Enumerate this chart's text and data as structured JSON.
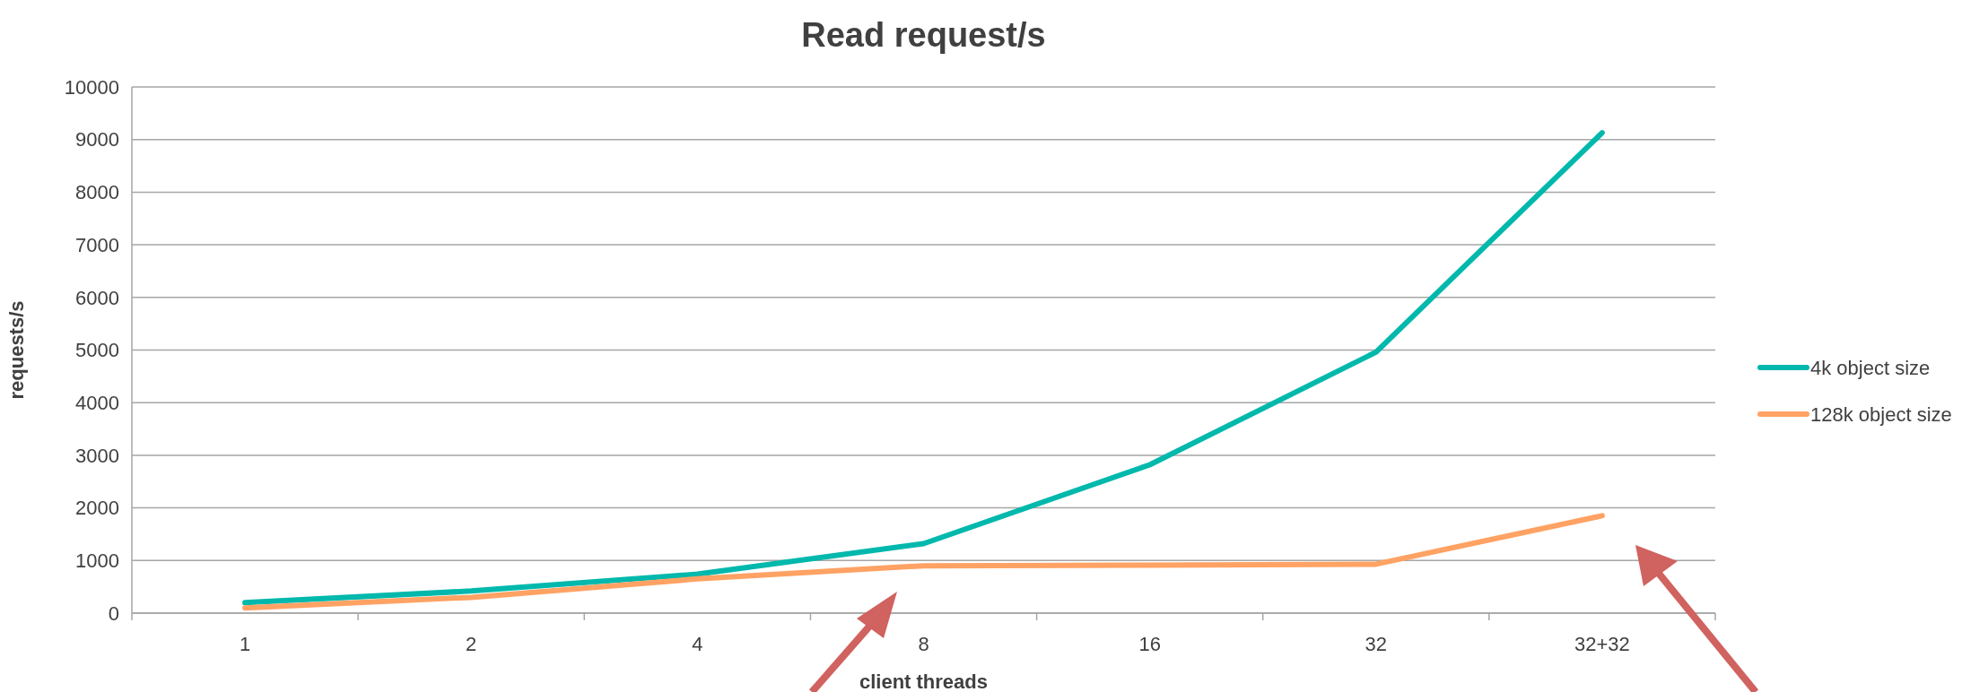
{
  "chart_data": {
    "type": "line",
    "title": "Read request/s",
    "xlabel": "client threads",
    "ylabel": "requests/s",
    "categories": [
      "1",
      "2",
      "4",
      "8",
      "16",
      "32",
      "32+32"
    ],
    "series": [
      {
        "name": "4k object size",
        "color": "#00b8ac",
        "values": [
          200,
          420,
          740,
          1320,
          2820,
          4960,
          9130
        ]
      },
      {
        "name": "128k object size",
        "color": "#ffa264",
        "values": [
          100,
          300,
          650,
          900,
          910,
          930,
          1850
        ]
      }
    ],
    "ylim": [
      0,
      10000
    ],
    "yticks": [
      0,
      1000,
      2000,
      3000,
      4000,
      5000,
      6000,
      7000,
      8000,
      9000,
      10000
    ],
    "grid": "y",
    "legend": "right",
    "marker": "none",
    "line_style": "solid"
  }
}
